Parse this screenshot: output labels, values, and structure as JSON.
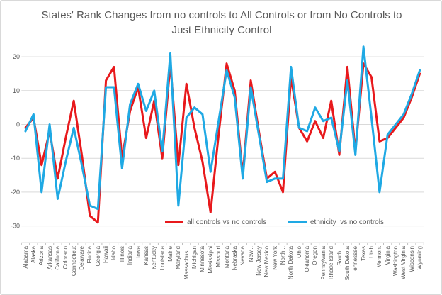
{
  "title": {
    "text": "States' Rank Changes from no controls to All Controls or from No Controls to Just Ethnicity Control"
  },
  "axes": {
    "yticks": [
      "20",
      "10",
      "0",
      "-10",
      "-20",
      "-30"
    ],
    "ytick_values": [
      20,
      10,
      0,
      -10,
      -20,
      -30
    ]
  },
  "colors": {
    "red_series": "#e8191c",
    "blue_series": "#1fa9e4",
    "gridline": "#d9d9d9",
    "axis_line": "#bfbfbf",
    "text": "#595959"
  },
  "chart_data": {
    "type": "line",
    "title": "States' Rank Changes from no controls to All Controls or from No Controls to Just Ethnicity Control",
    "xlabel": "",
    "ylabel": "",
    "ylim": [
      -35,
      20
    ],
    "yticks": [
      20,
      10,
      0,
      -10,
      -20,
      -30
    ],
    "grid": true,
    "legend_position": "bottom",
    "categories": [
      "Alabama",
      "Alaska",
      "Arizona",
      "Arkansas",
      "California",
      "Colorado",
      "Connecticut",
      "Delaware",
      "Florida",
      "Georgia",
      "Hawaii",
      "Idaho",
      "Illinois",
      "Indiana",
      "Iowa",
      "Kansas",
      "Kentucky",
      "Louisiana",
      "Maine",
      "Maryland",
      "Massachus...",
      "Michigan",
      "Minnesota",
      "Mississippi",
      "Missouri",
      "Montana",
      "Nebraska",
      "Nevada",
      "New...",
      "New Jersey",
      "New Mexico",
      "New York",
      "North...",
      "North Dakota",
      "Ohio",
      "Oklahoma",
      "Oregon",
      "Pennsylvania",
      "Rhode Island",
      "South...",
      "South Dakota",
      "Tennessee",
      "Texas",
      "Utah",
      "Vermont",
      "Virginia",
      "Washington",
      "West Virginia",
      "Wisconsin",
      "Wyoming"
    ],
    "series": [
      {
        "name": "all controls vs no controls",
        "color": "#e8191c",
        "values": [
          -1,
          2,
          -12,
          -2,
          -16,
          -4,
          7,
          -9,
          -27,
          -29,
          13,
          17,
          -10,
          4,
          11,
          -4,
          7,
          -10,
          18,
          -12,
          12,
          -1,
          -11,
          -26,
          -3,
          18,
          10,
          -15,
          13,
          -2,
          -16,
          -14,
          -20,
          14,
          -1,
          -5,
          1,
          -4,
          7,
          -9,
          17,
          -8,
          18,
          14,
          -5,
          -4,
          -1,
          2,
          8,
          15
        ]
      },
      {
        "name": "ethnicity  vs no controls",
        "color": "#1fa9e4",
        "values": [
          -2,
          3,
          -20,
          0,
          -22,
          -11,
          -1,
          -12,
          -24,
          -25,
          11,
          11,
          -13,
          6,
          12,
          4,
          10,
          -8,
          21,
          -24,
          2,
          5,
          3,
          -14,
          1,
          16,
          8,
          -16,
          11,
          -3,
          -17,
          -16,
          -16,
          17,
          -1,
          -2,
          5,
          1,
          2,
          -8,
          13,
          -9,
          23,
          2,
          -20,
          -3,
          0,
          3,
          9,
          16
        ]
      }
    ]
  }
}
